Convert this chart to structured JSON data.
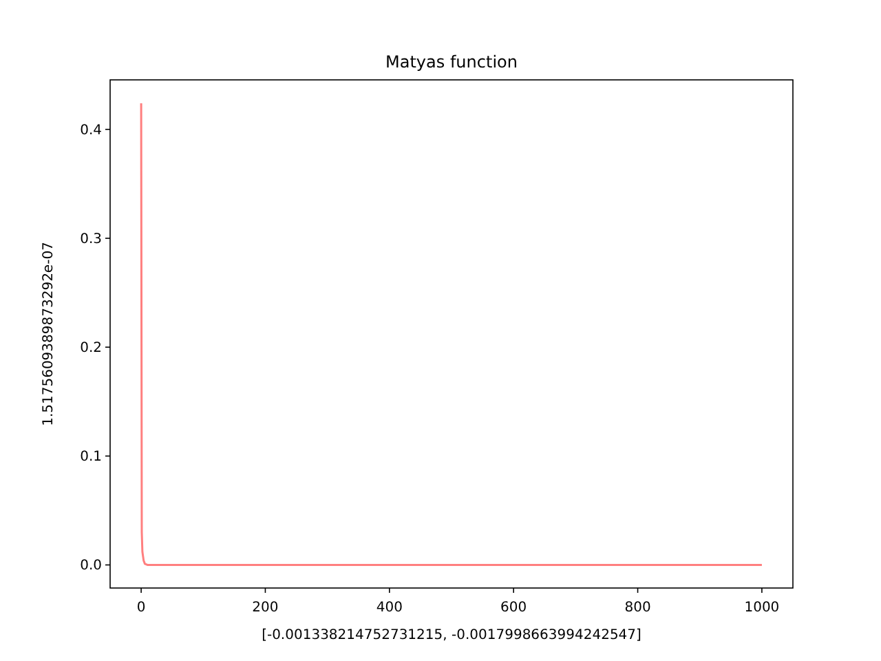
{
  "chart_data": {
    "type": "line",
    "title": "Matyas function",
    "xlabel": "[-0.001338214752731215, -0.0017998663994242547]",
    "ylabel": "1.5175609389873292e-07",
    "x": [
      0,
      1,
      2,
      4,
      6,
      10,
      20,
      50,
      100,
      200,
      400,
      600,
      800,
      1000
    ],
    "series": [
      {
        "color": "#ff7f7f",
        "values": [
          0.424,
          0.03,
          0.012,
          0.004,
          0.001,
          0,
          0,
          0,
          0,
          0,
          0,
          0,
          0,
          0
        ]
      }
    ],
    "xlim": [
      -50,
      1050
    ],
    "xticks": [
      0,
      200,
      400,
      600,
      800,
      1000
    ],
    "ylim": [
      -0.0212,
      0.4455
    ],
    "yticks": [
      {
        "value": 0,
        "label": "0.0"
      },
      0.1,
      0.2,
      0.3,
      0.4
    ],
    "grid": false,
    "marker": "none",
    "line_style": "solid"
  }
}
